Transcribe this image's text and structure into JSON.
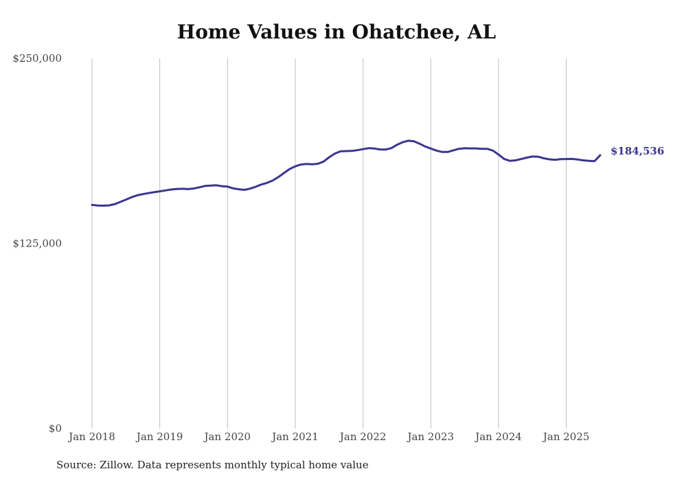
{
  "chart_data": {
    "type": "line",
    "title": "Home Values in Ohatchee, AL",
    "source": "Source: Zillow. Data represents monthly typical home value",
    "ylim": [
      0,
      250000
    ],
    "y_ticks": [
      {
        "value": 0,
        "label": "$0"
      },
      {
        "value": 125000,
        "label": "$125,000"
      },
      {
        "value": 250000,
        "label": "$250,000"
      }
    ],
    "x_ticks": [
      {
        "value": "2018-01",
        "label": "Jan 2018"
      },
      {
        "value": "2019-01",
        "label": "Jan 2019"
      },
      {
        "value": "2020-01",
        "label": "Jan 2020"
      },
      {
        "value": "2021-01",
        "label": "Jan 2021"
      },
      {
        "value": "2022-01",
        "label": "Jan 2022"
      },
      {
        "value": "2023-01",
        "label": "Jan 2023"
      },
      {
        "value": "2024-01",
        "label": "Jan 2024"
      },
      {
        "value": "2025-01",
        "label": "Jan 2025"
      }
    ],
    "xlim": [
      "2018-01",
      "2025-07"
    ],
    "grid": "vertical",
    "line_color": "#3a3591",
    "end_label": "$184,536",
    "series": [
      {
        "x": [
          "2018-01",
          "2018-02",
          "2018-03",
          "2018-04",
          "2018-05",
          "2018-06",
          "2018-07",
          "2018-08",
          "2018-09",
          "2018-10",
          "2018-11",
          "2018-12",
          "2019-01",
          "2019-02",
          "2019-03",
          "2019-04",
          "2019-05",
          "2019-06",
          "2019-07",
          "2019-08",
          "2019-09",
          "2019-10",
          "2019-11",
          "2019-12",
          "2020-01",
          "2020-02",
          "2020-03",
          "2020-04",
          "2020-05",
          "2020-06",
          "2020-07",
          "2020-08",
          "2020-09",
          "2020-10",
          "2020-11",
          "2020-12",
          "2021-01",
          "2021-02",
          "2021-03",
          "2021-04",
          "2021-05",
          "2021-06",
          "2021-07",
          "2021-08",
          "2021-09",
          "2021-10",
          "2021-11",
          "2021-12",
          "2022-01",
          "2022-02",
          "2022-03",
          "2022-04",
          "2022-05",
          "2022-06",
          "2022-07",
          "2022-08",
          "2022-09",
          "2022-10",
          "2022-11",
          "2022-12",
          "2023-01",
          "2023-02",
          "2023-03",
          "2023-04",
          "2023-05",
          "2023-06",
          "2023-07",
          "2023-08",
          "2023-09",
          "2023-10",
          "2023-11",
          "2023-12",
          "2024-01",
          "2024-02",
          "2024-03",
          "2024-04",
          "2024-05",
          "2024-06",
          "2024-07",
          "2024-08",
          "2024-09",
          "2024-10",
          "2024-11",
          "2024-12",
          "2025-01",
          "2025-02",
          "2025-03",
          "2025-04",
          "2025-05",
          "2025-06",
          "2025-07"
        ],
        "values": [
          151000,
          150600,
          150500,
          150700,
          151500,
          153000,
          154600,
          156200,
          157500,
          158300,
          159000,
          159600,
          160200,
          160800,
          161400,
          161800,
          161900,
          161700,
          162100,
          162900,
          163800,
          164100,
          164300,
          163700,
          163400,
          162200,
          161600,
          161200,
          162000,
          163300,
          164800,
          165900,
          167500,
          169800,
          172600,
          175300,
          177100,
          178300,
          178700,
          178500,
          178800,
          180300,
          183200,
          185700,
          187200,
          187400,
          187500,
          188000,
          188700,
          189400,
          189100,
          188500,
          188400,
          189400,
          191600,
          193300,
          194400,
          194000,
          192400,
          190500,
          189100,
          187700,
          186800,
          186800,
          187900,
          188900,
          189300,
          189200,
          189200,
          188900,
          188900,
          187700,
          185000,
          182000,
          180800,
          181100,
          182000,
          183000,
          183700,
          183600,
          182500,
          181800,
          181500,
          181900,
          182000,
          182100,
          181700,
          181100,
          180800,
          180600,
          184536
        ]
      }
    ]
  }
}
